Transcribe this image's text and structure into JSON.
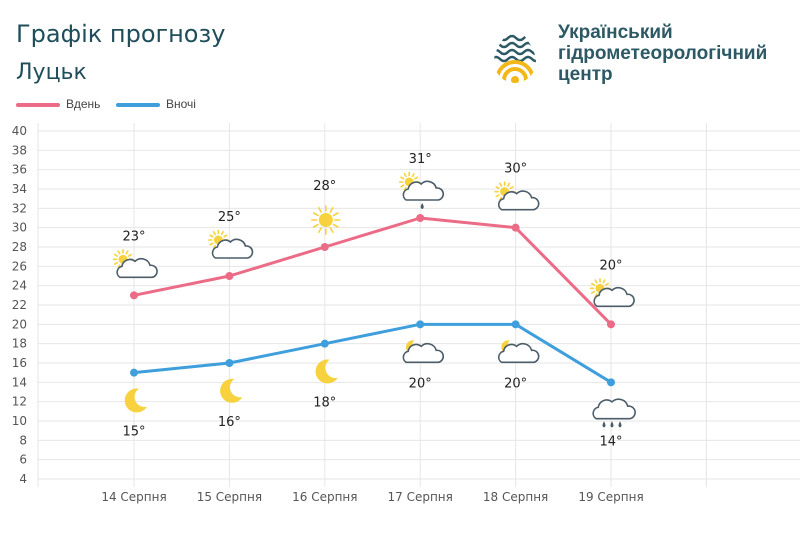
{
  "header": {
    "title": "Графік прогнозу",
    "city": "Луцьк"
  },
  "logo": {
    "line1": "Український",
    "line2": "гідрометеорологічний",
    "line3": "центр",
    "icon": "drop-logo-icon"
  },
  "colors": {
    "day": "#ec6b86",
    "night": "#3e9fdc",
    "grid": "#e6e6e6",
    "title": "#1f4e5a",
    "sun": "#f7d23e",
    "cloud_stroke": "#4c5d6a"
  },
  "chart_data": {
    "type": "line",
    "categories": [
      "14 Серпня",
      "15 Серпня",
      "16 Серпня",
      "17 Серпня",
      "18 Серпня",
      "19 Серпня"
    ],
    "ylim": [
      4,
      40
    ],
    "yticks": [
      4,
      6,
      8,
      10,
      12,
      14,
      16,
      18,
      20,
      22,
      24,
      26,
      28,
      30,
      32,
      34,
      36,
      38,
      40
    ],
    "grid": true,
    "legend": "top-left",
    "series": [
      {
        "name": "Вдень",
        "key": "day",
        "values": [
          23,
          25,
          28,
          31,
          30,
          20
        ],
        "labels": [
          "23°",
          "25°",
          "28°",
          "31°",
          "30°",
          "20°"
        ],
        "icons": [
          "partly-cloudy-icon",
          "partly-cloudy-icon",
          "sun-icon",
          "partly-cloudy-rain-icon",
          "partly-cloudy-icon",
          "partly-cloudy-icon"
        ]
      },
      {
        "name": "Вночі",
        "key": "night",
        "values": [
          15,
          16,
          18,
          20,
          20,
          14
        ],
        "labels": [
          "15°",
          "16°",
          "18°",
          "20°",
          "20°",
          "14°"
        ],
        "icons": [
          "moon-icon",
          "moon-icon",
          "moon-icon",
          "moon-cloud-icon",
          "moon-cloud-icon",
          "rain-cloud-icon"
        ]
      }
    ]
  }
}
